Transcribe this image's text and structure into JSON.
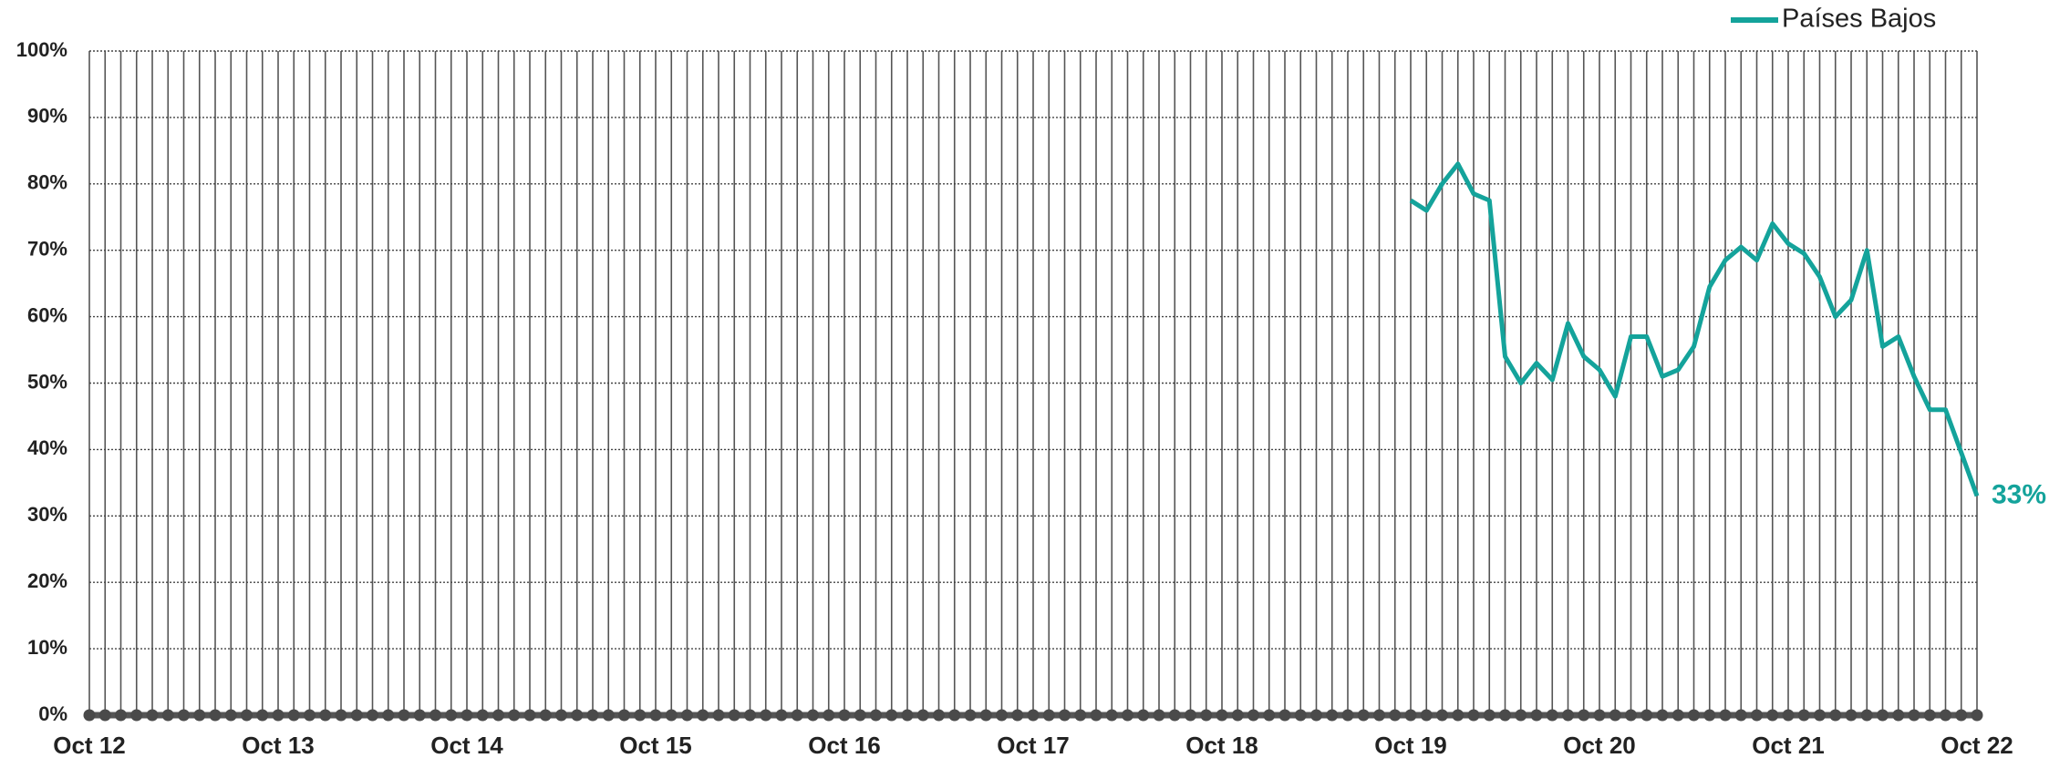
{
  "chart_data": {
    "type": "line",
    "categories": [
      "Oct 12",
      null,
      null,
      null,
      null,
      null,
      null,
      null,
      null,
      null,
      null,
      null,
      "Oct 13",
      null,
      null,
      null,
      null,
      null,
      null,
      null,
      null,
      null,
      null,
      null,
      "Oct 14",
      null,
      null,
      null,
      null,
      null,
      null,
      null,
      null,
      null,
      null,
      null,
      "Oct 15",
      null,
      null,
      null,
      null,
      null,
      null,
      null,
      null,
      null,
      null,
      null,
      "Oct 16",
      null,
      null,
      null,
      null,
      null,
      null,
      null,
      null,
      null,
      null,
      null,
      "Oct 17",
      null,
      null,
      null,
      null,
      null,
      null,
      null,
      null,
      null,
      null,
      null,
      "Oct 18",
      null,
      null,
      null,
      null,
      null,
      null,
      null,
      null,
      null,
      null,
      null,
      "Oct 19",
      null,
      null,
      null,
      null,
      null,
      null,
      null,
      null,
      null,
      null,
      null,
      "Oct 20",
      null,
      null,
      null,
      null,
      null,
      null,
      null,
      null,
      null,
      null,
      null,
      "Oct 21",
      null,
      null,
      null,
      null,
      null,
      null,
      null,
      null,
      null,
      null,
      null,
      "Oct 22"
    ],
    "series": [
      {
        "name": "Países Bajos",
        "color": "#14a39b",
        "values": [
          null,
          null,
          null,
          null,
          null,
          null,
          null,
          null,
          null,
          null,
          null,
          null,
          null,
          null,
          null,
          null,
          null,
          null,
          null,
          null,
          null,
          null,
          null,
          null,
          null,
          null,
          null,
          null,
          null,
          null,
          null,
          null,
          null,
          null,
          null,
          null,
          null,
          null,
          null,
          null,
          null,
          null,
          null,
          null,
          null,
          null,
          null,
          null,
          null,
          null,
          null,
          null,
          null,
          null,
          null,
          null,
          null,
          null,
          null,
          null,
          null,
          null,
          null,
          null,
          null,
          null,
          null,
          null,
          null,
          null,
          null,
          null,
          null,
          null,
          null,
          null,
          null,
          null,
          null,
          null,
          null,
          null,
          null,
          null,
          77.5,
          76,
          80,
          83,
          78.5,
          77.5,
          54,
          50,
          53,
          50.5,
          59,
          54,
          52,
          48,
          57,
          57,
          51,
          52,
          55.5,
          64.5,
          68.5,
          70.5,
          68.5,
          74,
          71,
          69.5,
          66,
          60,
          62.5,
          70,
          55.5,
          57,
          51,
          46,
          46,
          39.5,
          33
        ],
        "value_labels": [
          null,
          null,
          null,
          null,
          null,
          null,
          null,
          null,
          null,
          null,
          null,
          null,
          null,
          null,
          null,
          null,
          null,
          null,
          null,
          null,
          null,
          null,
          null,
          null,
          null,
          null,
          null,
          null,
          null,
          null,
          null,
          null,
          null,
          null,
          null,
          null,
          null,
          null,
          null,
          null,
          null,
          null,
          null,
          null,
          null,
          null,
          null,
          null,
          null,
          null,
          null,
          null,
          null,
          null,
          null,
          null,
          null,
          null,
          null,
          null,
          null,
          null,
          null,
          null,
          null,
          null,
          null,
          null,
          null,
          null,
          null,
          null,
          null,
          null,
          null,
          null,
          null,
          null,
          null,
          null,
          null,
          null,
          null,
          null,
          null,
          null,
          null,
          null,
          null,
          null,
          null,
          null,
          null,
          null,
          null,
          null,
          null,
          null,
          null,
          null,
          null,
          null,
          null,
          null,
          null,
          null,
          null,
          null,
          null,
          null,
          null,
          null,
          null,
          null,
          null,
          null,
          null,
          null,
          null,
          null,
          "33%"
        ]
      }
    ],
    "ylim": [
      0,
      100
    ],
    "yticks": [
      {
        "value": 0,
        "label": "0%"
      },
      {
        "value": 10,
        "label": "10%"
      },
      {
        "value": 20,
        "label": "20%"
      },
      {
        "value": 30,
        "label": "30%"
      },
      {
        "value": 40,
        "label": "40%"
      },
      {
        "value": 50,
        "label": "50%"
      },
      {
        "value": 60,
        "label": "60%"
      },
      {
        "value": 70,
        "label": "70%"
      },
      {
        "value": 80,
        "label": "80%"
      },
      {
        "value": 90,
        "label": "90%"
      },
      {
        "value": 100,
        "label": "100%"
      }
    ],
    "grid": true,
    "legend": "top-right"
  }
}
